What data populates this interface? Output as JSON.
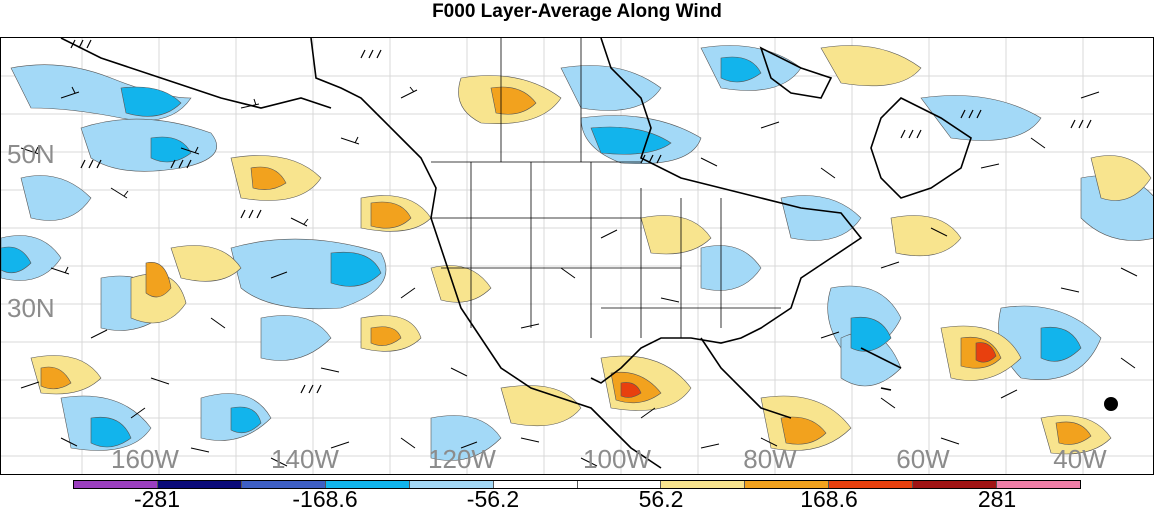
{
  "title": "F000 Layer-Average Along Wind",
  "map": {
    "latitude_labels": [
      "50N",
      "30N"
    ],
    "longitude_labels": [
      "160W",
      "140W",
      "120W",
      "100W",
      "80W",
      "60W",
      "40W"
    ],
    "region": "North America and adjacent Pacific / Atlantic"
  },
  "colorbar": {
    "colors": [
      "#9b3fbf",
      "#0a0a78",
      "#3e5fc4",
      "#12b4ec",
      "#a3d9f7",
      "#ffffff",
      "#ffffff",
      "#f8e48e",
      "#f2a21e",
      "#e8400e",
      "#a01414",
      "#f07fa8"
    ],
    "tick_labels": [
      "-281",
      "-168.6",
      "-56.2",
      "56.2",
      "168.6",
      "281"
    ]
  }
}
